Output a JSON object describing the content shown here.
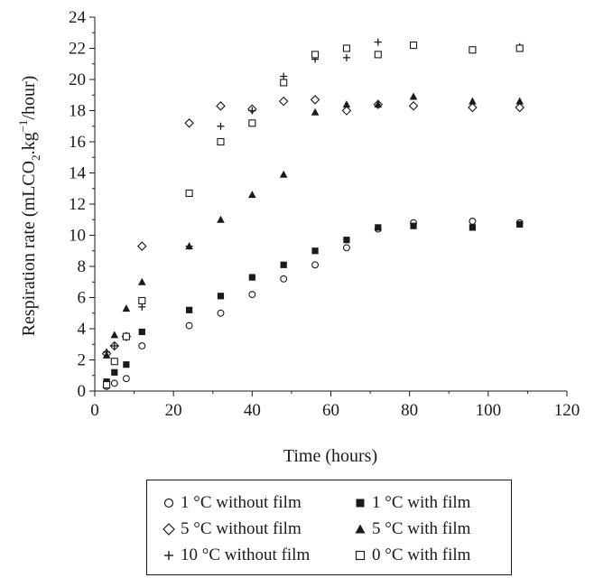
{
  "chart_data": {
    "type": "scatter",
    "title": "",
    "xlabel": "Time (hours)",
    "ylabel_main": "Respiration rate (mLCO",
    "ylabel_sub2": "2",
    "ylabel_mid": ".kg",
    "ylabel_sup": "−1",
    "ylabel_end": "/hour)",
    "xlim": [
      0,
      120
    ],
    "ylim": [
      0,
      24
    ],
    "xticks": [
      0,
      20,
      40,
      60,
      80,
      100,
      120
    ],
    "yticks": [
      0,
      2,
      4,
      6,
      8,
      10,
      12,
      14,
      16,
      18,
      20,
      22,
      24
    ],
    "grid": false,
    "legend_position": "bottom",
    "series": [
      {
        "name": "1 °C without film",
        "marker": "circle-open",
        "points": [
          [
            3,
            0.3
          ],
          [
            5,
            0.5
          ],
          [
            8,
            0.8
          ],
          [
            12,
            2.9
          ],
          [
            24,
            4.2
          ],
          [
            32,
            5.0
          ],
          [
            40,
            6.2
          ],
          [
            48,
            7.2
          ],
          [
            56,
            8.1
          ],
          [
            64,
            9.2
          ],
          [
            72,
            10.4
          ],
          [
            81,
            10.8
          ],
          [
            96,
            10.9
          ],
          [
            108,
            10.8
          ]
        ]
      },
      {
        "name": "1 °C with film",
        "marker": "square-filled",
        "points": [
          [
            3,
            0.6
          ],
          [
            5,
            1.2
          ],
          [
            8,
            1.7
          ],
          [
            12,
            3.8
          ],
          [
            24,
            5.2
          ],
          [
            32,
            6.1
          ],
          [
            40,
            7.3
          ],
          [
            48,
            8.1
          ],
          [
            56,
            9.0
          ],
          [
            64,
            9.7
          ],
          [
            72,
            10.5
          ],
          [
            81,
            10.6
          ],
          [
            96,
            10.5
          ],
          [
            108,
            10.7
          ]
        ]
      },
      {
        "name": "5 °C without film",
        "marker": "diamond-open",
        "points": [
          [
            3,
            2.4
          ],
          [
            5,
            2.9
          ],
          [
            8,
            3.5
          ],
          [
            12,
            9.3
          ],
          [
            24,
            17.2
          ],
          [
            32,
            18.3
          ],
          [
            40,
            18.1
          ],
          [
            48,
            18.6
          ],
          [
            56,
            18.7
          ],
          [
            64,
            18.0
          ],
          [
            72,
            18.4
          ],
          [
            81,
            18.3
          ],
          [
            96,
            18.2
          ],
          [
            108,
            18.2
          ]
        ]
      },
      {
        "name": "5 °C with film",
        "marker": "triangle-filled",
        "points": [
          [
            3,
            2.3
          ],
          [
            5,
            3.6
          ],
          [
            8,
            5.3
          ],
          [
            12,
            7.0
          ],
          [
            24,
            9.3
          ],
          [
            32,
            11.0
          ],
          [
            40,
            12.6
          ],
          [
            48,
            13.9
          ],
          [
            56,
            17.9
          ],
          [
            64,
            18.4
          ],
          [
            72,
            18.4
          ],
          [
            81,
            18.9
          ],
          [
            96,
            18.6
          ],
          [
            108,
            18.6
          ]
        ]
      },
      {
        "name": "10 °C without film",
        "marker": "plus",
        "points": [
          [
            3,
            2.5
          ],
          [
            5,
            2.9
          ],
          [
            8,
            3.5
          ],
          [
            12,
            5.4
          ],
          [
            24,
            9.3
          ],
          [
            32,
            17.0
          ],
          [
            40,
            18.0
          ],
          [
            48,
            20.2
          ],
          [
            56,
            21.3
          ],
          [
            64,
            21.4
          ],
          [
            72,
            22.4
          ],
          [
            81,
            22.2
          ],
          [
            96,
            21.9
          ],
          [
            108,
            22.1
          ]
        ]
      },
      {
        "name": "0 °C with film",
        "marker": "square-open",
        "points": [
          [
            3,
            0.4
          ],
          [
            5,
            1.9
          ],
          [
            8,
            3.5
          ],
          [
            12,
            5.8
          ],
          [
            24,
            12.7
          ],
          [
            32,
            16.0
          ],
          [
            40,
            17.2
          ],
          [
            48,
            19.8
          ],
          [
            56,
            21.6
          ],
          [
            64,
            22.0
          ],
          [
            72,
            21.6
          ],
          [
            81,
            22.2
          ],
          [
            96,
            21.9
          ],
          [
            108,
            22.0
          ]
        ]
      }
    ]
  }
}
